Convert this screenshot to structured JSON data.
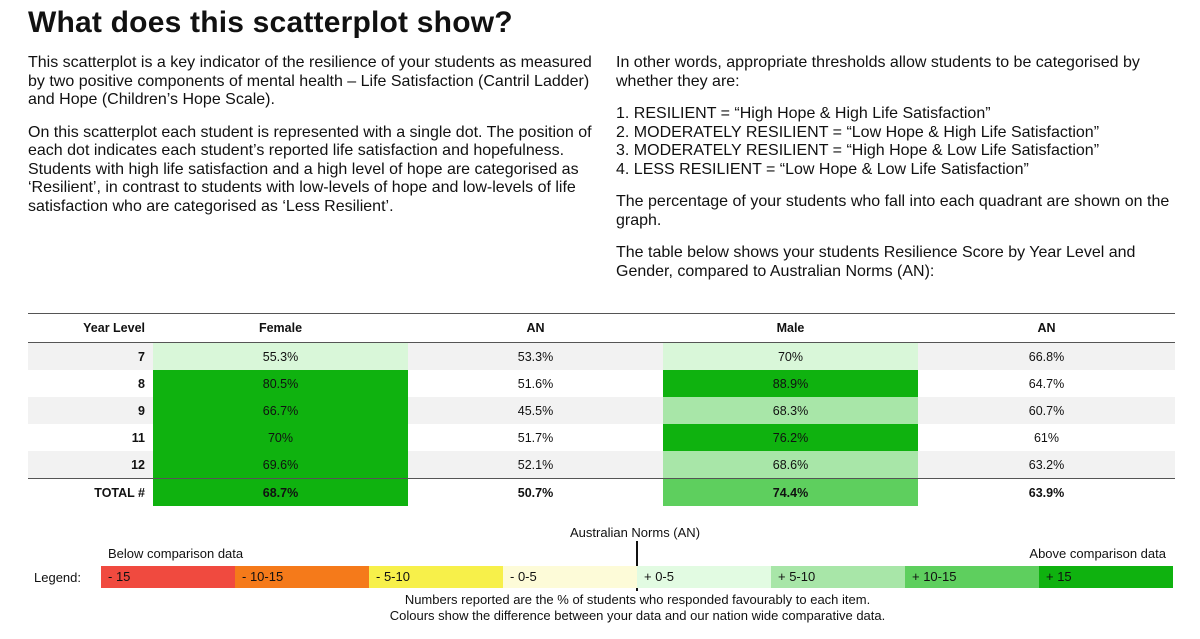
{
  "title": "What does this scatterplot show?",
  "left_paragraphs": [
    "This scatterplot is a key indicator of the resilience of your students as measured by two positive components of mental health – Life Satisfaction (Cantril Ladder) and Hope (Children’s Hope Scale).",
    "On this scatterplot each student is represented with a single dot. The position of each dot indicates each student’s reported life satisfaction and hopefulness. Students with high life satisfaction and a high level of hope are categorised as ‘Resilient’, in contrast to students with low-levels of hope and low-levels of life satisfaction who are categorised as ‘Less Resilient’."
  ],
  "right_intro": "In other words, appropriate thresholds allow students to be categorised by whether they are:",
  "categories": [
    "1. RESILIENT = “High Hope & High Life Satisfaction”",
    "2. MODERATELY RESILIENT = “Low Hope & High Life Satisfaction”",
    "3. MODERATELY RESILIENT = “High Hope & Low Life Satisfaction”",
    "4. LESS RESILIENT = “Low Hope & Low Life Satisfaction”"
  ],
  "right_para2": "The percentage of your students who fall into each quadrant are shown on the graph.",
  "right_para3": "The table below shows your students Resilience Score by Year Level and Gender, compared to Australian Norms (AN):",
  "table": {
    "headers": [
      "Year Level",
      "Female",
      "AN",
      "Male",
      "AN"
    ],
    "rows": [
      {
        "year": "7",
        "female": "55.3%",
        "female_an": "53.3%",
        "male": "70%",
        "male_an": "66.8%",
        "female_color": "#d9f7d9",
        "male_color": "#d9f7d9"
      },
      {
        "year": "8",
        "female": "80.5%",
        "female_an": "51.6%",
        "male": "88.9%",
        "male_an": "64.7%",
        "female_color": "#0fb20f",
        "male_color": "#0fb20f"
      },
      {
        "year": "9",
        "female": "66.7%",
        "female_an": "45.5%",
        "male": "68.3%",
        "male_an": "60.7%",
        "female_color": "#0fb20f",
        "male_color": "#a8e6a8"
      },
      {
        "year": "11",
        "female": "70%",
        "female_an": "51.7%",
        "male": "76.2%",
        "male_an": "61%",
        "female_color": "#0fb20f",
        "male_color": "#0fb20f"
      },
      {
        "year": "12",
        "female": "69.6%",
        "female_an": "52.1%",
        "male": "68.6%",
        "male_an": "63.2%",
        "female_color": "#0fb20f",
        "male_color": "#a8e6a8"
      }
    ],
    "total": {
      "year": "TOTAL #",
      "female": "68.7%",
      "female_an": "50.7%",
      "male": "74.4%",
      "male_an": "63.9%",
      "female_color": "#0fb20f",
      "male_color": "#5ecf5e"
    }
  },
  "legend": {
    "norms_label": "Australian Norms (AN)",
    "below_label": "Below comparison data",
    "above_label": "Above comparison data",
    "title": "Legend:",
    "segments": [
      {
        "label": "- 15",
        "color": "#f04a3f"
      },
      {
        "label": "- 10-15",
        "color": "#f57a1a"
      },
      {
        "label": "- 5-10",
        "color": "#f7f04a"
      },
      {
        "label": "- 0-5",
        "color": "#fdfbd8"
      },
      {
        "label": "+ 0-5",
        "color": "#e2fbe2"
      },
      {
        "label": "+ 5-10",
        "color": "#a8e6a8"
      },
      {
        "label": "+ 10-15",
        "color": "#5ecf5e"
      },
      {
        "label": "+ 15",
        "color": "#0fb20f"
      }
    ]
  },
  "notes": [
    "Numbers reported are the % of students who responded favourably to each item.",
    "Colours show the difference between your data and our nation wide comparative data."
  ]
}
